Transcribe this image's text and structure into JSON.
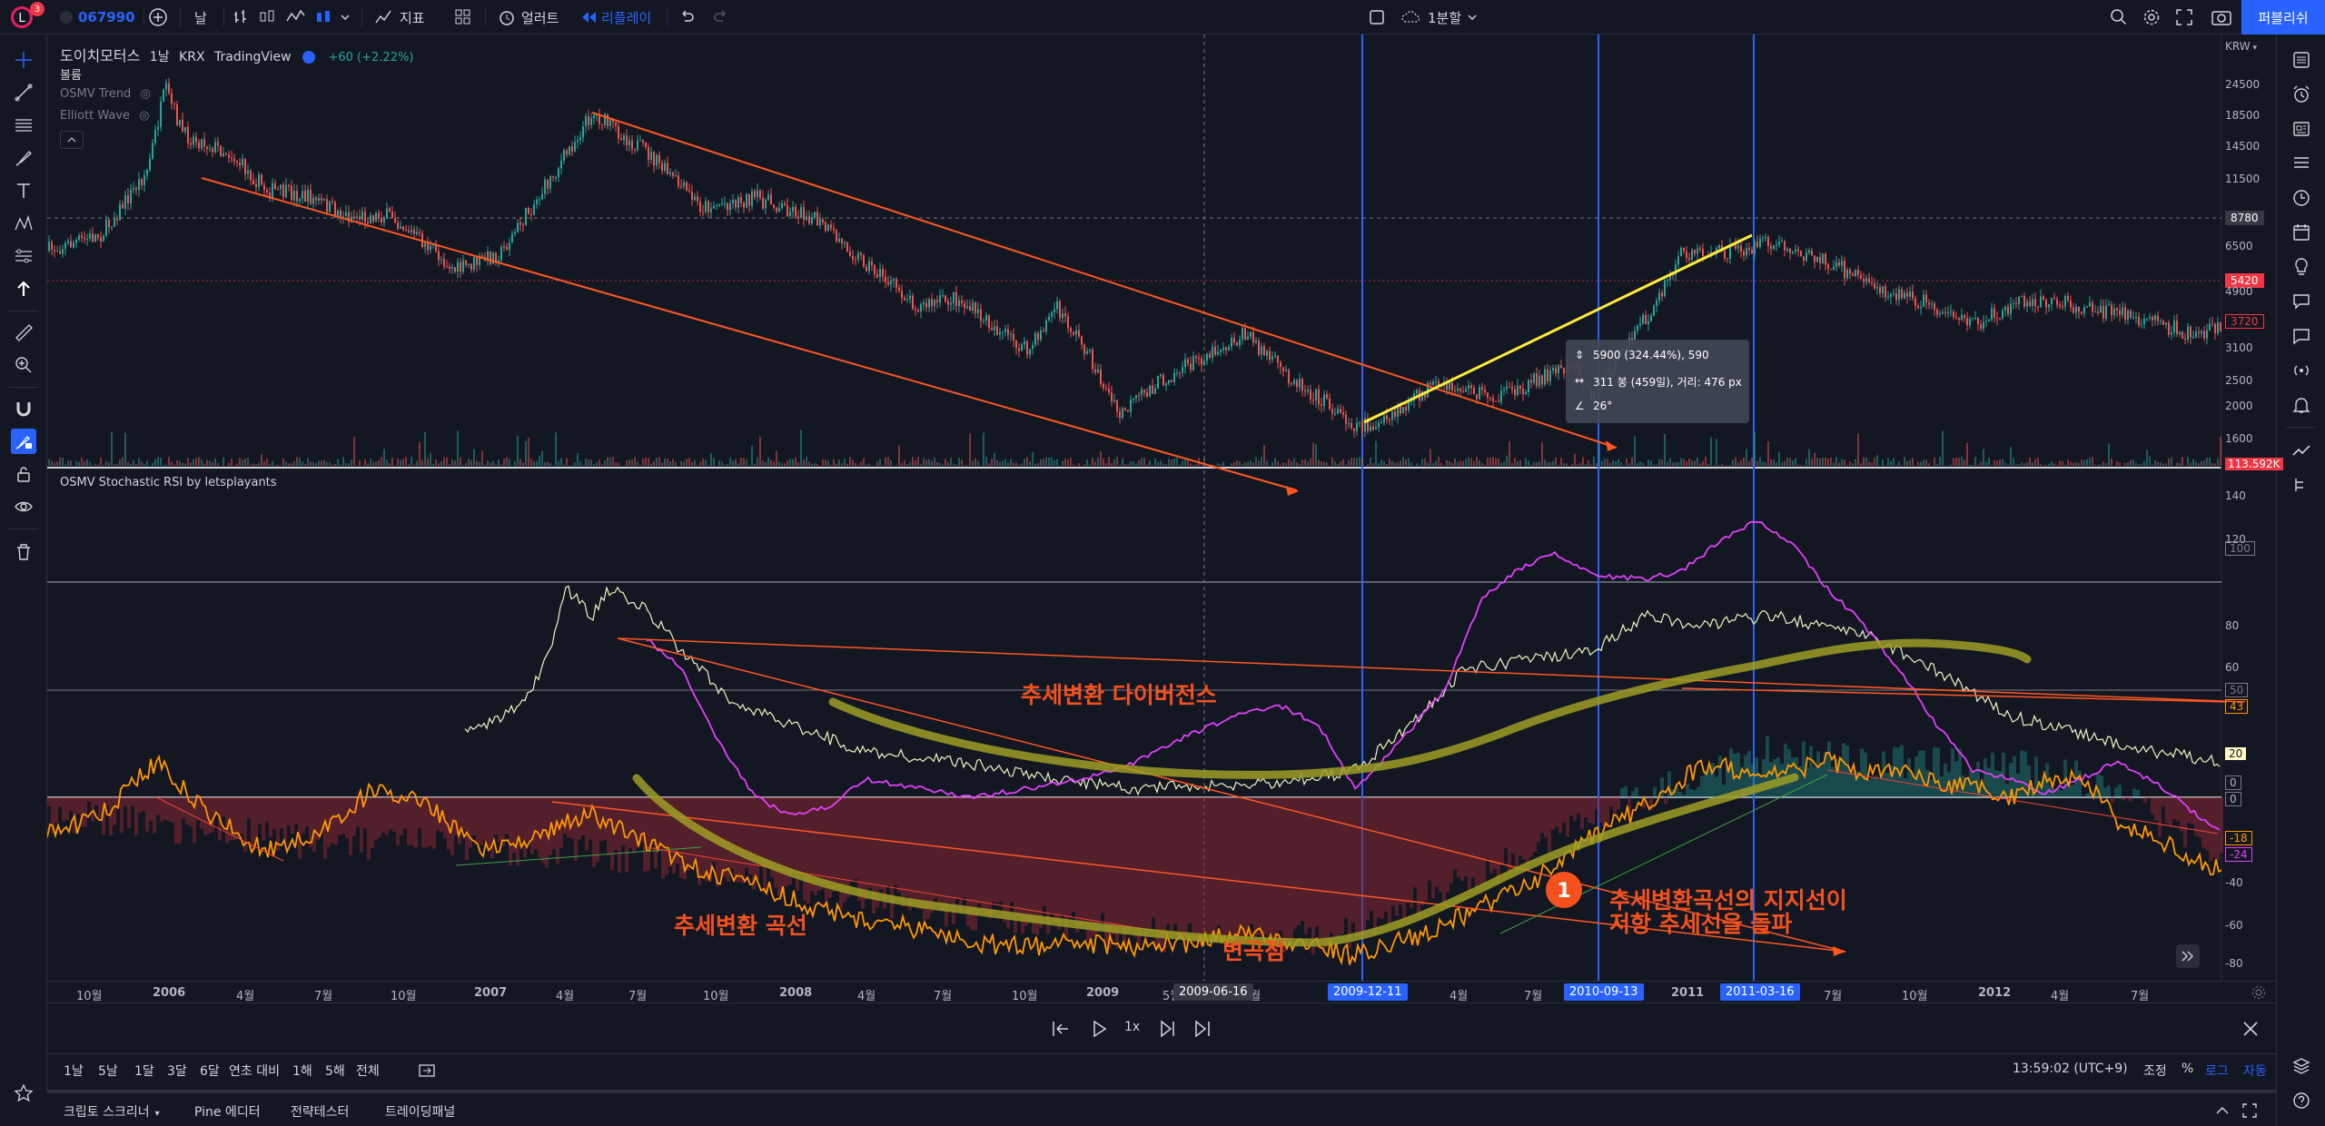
{
  "topbar": {
    "symbol": "067990",
    "notif_count": "3",
    "interval": "날",
    "indicators_label": "지표",
    "alert_label": "얼러트",
    "replay_label": "리플레이",
    "layout_label": "1분할",
    "publish_label": "퍼블리쉬"
  },
  "legend": {
    "name": "도이치모터스",
    "interval": "1날",
    "exchange": "KRX",
    "source": "TradingView",
    "change": "+60 (+2.22%)",
    "volume_label": "볼륨",
    "ind1": "OSMV Trend",
    "ind2": "Elliott Wave"
  },
  "osc_legend": "OSMV Stochastic RSI by letsplayants",
  "price_axis": {
    "currency": "KRW",
    "ticks": [
      "24500",
      "18500",
      "14500",
      "11500",
      "8780",
      "6500",
      "5420",
      "4900",
      "3720",
      "3100",
      "2500",
      "2000",
      "1600",
      "113.592K"
    ],
    "crosshair_price": "8780",
    "current_price": "5420",
    "low_price": "3720",
    "volume_value": "113.592K"
  },
  "osc_axis": {
    "ticks": [
      "140",
      "120",
      "100",
      "80",
      "60",
      "50",
      "43",
      "20",
      "0",
      "0",
      "-18",
      "-24",
      "-40",
      "-60",
      "-80"
    ]
  },
  "tooltip": {
    "line1": "5900 (324.44%), 590",
    "line2": "311 봉 (459일), 거리: 476 px",
    "line3": "26°"
  },
  "annotations": {
    "divergence": "추세변환 다이버전스",
    "curve": "추세변환 곡선",
    "inflection": "변곡점",
    "circle_number": "1",
    "breakout_line1": "추세변환곡선의 지지선이",
    "breakout_line2": "저항 추세선을 돌파"
  },
  "time_axis": {
    "labels": [
      "10월",
      "2006",
      "4월",
      "7월",
      "10월",
      "2007",
      "4월",
      "7월",
      "10월",
      "2008",
      "4월",
      "7월",
      "10월",
      "2009",
      "5월",
      "8월",
      "4월",
      "7월",
      "2011",
      "4월",
      "7월",
      "10월",
      "2012",
      "4월",
      "7월"
    ],
    "crosshair_date": "2009-06-16",
    "marker1": "2009-12-11",
    "marker2": "2010-09-13",
    "marker3": "2011-03-16"
  },
  "replay": {
    "speed": "1x"
  },
  "rangebar": {
    "ranges": [
      "1날",
      "5날",
      "1달",
      "3달",
      "6달",
      "연초 대비",
      "1해",
      "5해",
      "전체"
    ],
    "time": "13:59:02 (UTC+9)",
    "adjust": "조정",
    "percent": "%",
    "log": "로그",
    "auto": "자동"
  },
  "tabs": [
    "크립토 스크리너",
    "Pine 에디터",
    "전략테스터",
    "트레이딩패널"
  ],
  "colors": {
    "bg": "#131722",
    "accent": "#2962ff",
    "annotation": "#f4511e",
    "trendline": "#ff5722",
    "yellow": "#ffeb3b",
    "curve": "#9e9d24",
    "magenta": "#e040fb",
    "orange_osc": "#ff9800"
  },
  "icons": [
    "crosshair-icon",
    "trendline-icon",
    "fib-icon",
    "brush-icon",
    "text-icon",
    "pattern-icon",
    "forecast-icon",
    "arrow-up-icon",
    "ruler-icon",
    "zoom-icon",
    "magnet-icon",
    "lock-draw-icon",
    "lock-icon",
    "eye-icon",
    "trash-icon",
    "star-icon",
    "watchlist-icon",
    "alarm-icon",
    "news-icon",
    "calendar-icon",
    "idea-icon",
    "chat-icon",
    "signal-icon",
    "layers-icon",
    "help-icon"
  ]
}
